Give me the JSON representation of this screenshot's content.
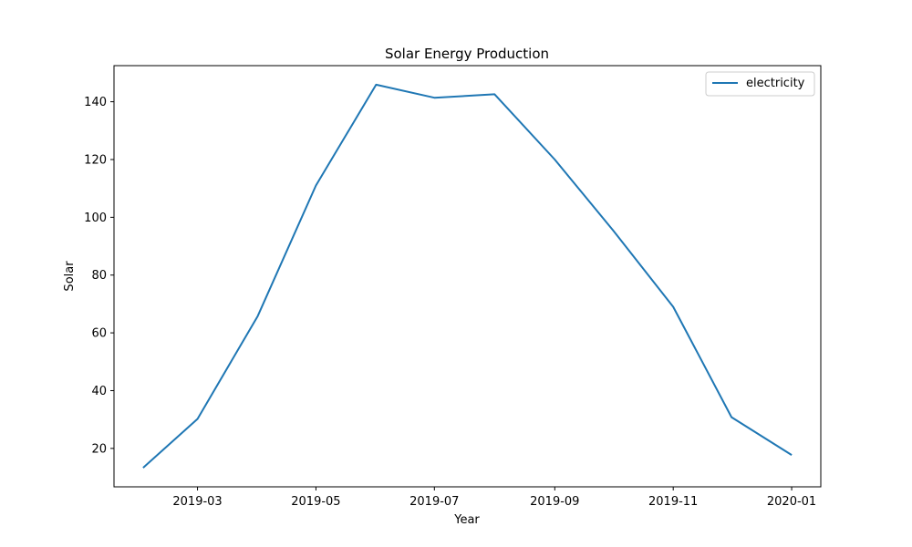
{
  "chart_data": {
    "type": "line",
    "title": "Solar Energy Production",
    "xlabel": "Year",
    "ylabel": "Solar",
    "x": [
      "2019-02-01",
      "2019-03-01",
      "2019-04-01",
      "2019-05-01",
      "2019-06-01",
      "2019-07-01",
      "2019-08-01",
      "2019-09-01",
      "2019-10-01",
      "2019-11-01",
      "2019-12-01",
      "2020-01-01"
    ],
    "series": [
      {
        "name": "electricity",
        "color": "#1f77b4",
        "values": [
          13.3,
          30.2,
          65.8,
          111.0,
          145.9,
          141.4,
          142.6,
          120.0,
          95.5,
          69.0,
          30.8,
          17.7
        ]
      }
    ],
    "xticks": [
      "2019-03",
      "2019-05",
      "2019-07",
      "2019-09",
      "2019-11",
      "2020-01"
    ],
    "yticks": [
      20,
      40,
      60,
      80,
      100,
      120,
      140
    ],
    "xlim": [
      "2019-01-17",
      "2020-01-16"
    ],
    "ylim": [
      6.7,
      152.5
    ],
    "grid": false,
    "legend_position": "upper right"
  }
}
